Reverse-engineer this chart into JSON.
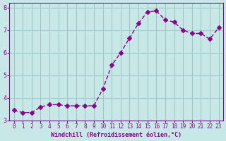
{
  "x": [
    0,
    1,
    2,
    3,
    4,
    5,
    6,
    7,
    8,
    9,
    10,
    11,
    12,
    13,
    14,
    15,
    16,
    17,
    18,
    19,
    20,
    21,
    22,
    23
  ],
  "y": [
    3.45,
    3.35,
    3.35,
    3.6,
    3.7,
    3.7,
    3.65,
    3.65,
    3.65,
    3.65,
    4.4,
    5.45,
    6.0,
    6.65,
    7.3,
    7.8,
    7.85,
    7.45,
    7.35,
    7.0,
    6.85,
    6.85,
    6.6,
    7.1
  ],
  "line_color": "#8B008B",
  "marker": "D",
  "marker_size": 3,
  "bg_color": "#c8e8e8",
  "grid_color": "#a0c8c8",
  "xlabel": "Windchill (Refroidissement éolien,°C)",
  "xlabel_color": "#8B008B",
  "tick_color": "#8B008B",
  "axis_label_color": "#8B008B",
  "ylim": [
    3.0,
    8.2
  ],
  "xlim": [
    -0.5,
    23.5
  ],
  "yticks": [
    3,
    4,
    5,
    6,
    7,
    8
  ],
  "xticks": [
    0,
    1,
    2,
    3,
    4,
    5,
    6,
    7,
    8,
    9,
    10,
    11,
    12,
    13,
    14,
    15,
    16,
    17,
    18,
    19,
    20,
    21,
    22,
    23
  ],
  "figsize": [
    3.2,
    2.0
  ],
  "dpi": 100
}
